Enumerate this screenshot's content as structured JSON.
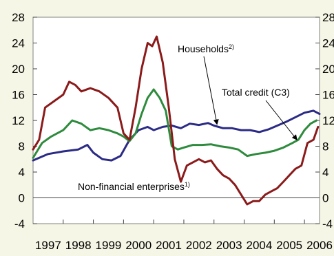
{
  "chart_data": {
    "type": "line",
    "title": "",
    "xlabel": "",
    "ylabel": "",
    "ylim": [
      -4,
      28
    ],
    "xlim": [
      1997,
      2006.5
    ],
    "y_ticks": [
      -4,
      0,
      4,
      8,
      12,
      16,
      20,
      24,
      28
    ],
    "y_tick_labels": [
      "-4",
      "0",
      "4",
      "8",
      "12",
      "16",
      "20",
      "24",
      "28"
    ],
    "x_tick_labels": [
      "1997",
      "1998",
      "1999",
      "2000",
      "2001",
      "2002",
      "2003",
      "2004",
      "2005",
      "2006"
    ],
    "grid": false,
    "legend": "none (inline annotations with arrows)",
    "annotations": [
      {
        "text": "Households",
        "sup": "2)",
        "target_series": "Households"
      },
      {
        "text": "Total credit (C3)",
        "sup": "",
        "target_series": "Total credit (C3)"
      },
      {
        "text": "Non-financial enterprises",
        "sup": "1)",
        "target_series": "Non-financial enterprises"
      }
    ],
    "series": [
      {
        "name": "Households",
        "color": "#2b2b86",
        "x": [
          1997.0,
          1997.5,
          1998.0,
          1998.5,
          1998.8,
          1999.0,
          1999.3,
          1999.6,
          1999.9,
          2000.2,
          2000.5,
          2000.8,
          2001.0,
          2001.3,
          2001.6,
          2001.9,
          2002.2,
          2002.5,
          2002.8,
          2003.0,
          2003.3,
          2003.6,
          2003.9,
          2004.2,
          2004.5,
          2004.8,
          2005.1,
          2005.4,
          2005.7,
          2006.0,
          2006.3,
          2006.5
        ],
        "y": [
          5.8,
          6.8,
          7.2,
          7.5,
          8.2,
          7.0,
          6.0,
          5.8,
          6.5,
          9.0,
          10.5,
          11.0,
          10.5,
          11.0,
          11.2,
          10.8,
          11.5,
          11.3,
          11.6,
          11.2,
          10.8,
          10.8,
          10.5,
          10.5,
          10.2,
          10.6,
          11.2,
          11.8,
          12.5,
          13.2,
          13.5,
          13.0
        ]
      },
      {
        "name": "Total credit (C3)",
        "color": "#2e8b3d",
        "x": [
          1997.0,
          1997.3,
          1997.6,
          1998.0,
          1998.3,
          1998.6,
          1998.9,
          1999.2,
          1999.5,
          1999.8,
          2000.0,
          2000.2,
          2000.4,
          2000.6,
          2000.8,
          2001.0,
          2001.2,
          2001.4,
          2001.6,
          2001.8,
          2002.0,
          2002.3,
          2002.6,
          2002.9,
          2003.2,
          2003.5,
          2003.8,
          2004.1,
          2004.4,
          2004.7,
          2005.0,
          2005.3,
          2005.6,
          2005.8,
          2006.0,
          2006.2,
          2006.4
        ],
        "y": [
          6.2,
          8.5,
          9.5,
          10.5,
          12.0,
          11.5,
          10.5,
          10.8,
          10.5,
          10.0,
          9.5,
          8.8,
          10.0,
          13.0,
          15.5,
          16.8,
          15.5,
          13.5,
          8.0,
          7.5,
          7.8,
          8.2,
          8.2,
          8.3,
          8.0,
          7.8,
          7.5,
          6.5,
          6.8,
          7.0,
          7.3,
          7.8,
          8.5,
          9.0,
          10.5,
          11.5,
          12.0
        ]
      },
      {
        "name": "Non-financial enterprises",
        "color": "#8b1a1a",
        "x": [
          1997.0,
          1997.2,
          1997.4,
          1997.7,
          1998.0,
          1998.2,
          1998.4,
          1998.6,
          1998.9,
          1999.2,
          1999.5,
          1999.8,
          2000.0,
          2000.2,
          2000.4,
          2000.6,
          2000.8,
          2000.95,
          2001.1,
          2001.3,
          2001.5,
          2001.7,
          2001.9,
          2002.1,
          2002.3,
          2002.5,
          2002.7,
          2002.9,
          2003.1,
          2003.3,
          2003.5,
          2003.7,
          2003.9,
          2004.1,
          2004.3,
          2004.5,
          2004.7,
          2004.9,
          2005.1,
          2005.3,
          2005.5,
          2005.7,
          2005.9,
          2006.1,
          2006.3,
          2006.45
        ],
        "y": [
          7.5,
          9.0,
          14.0,
          15.0,
          16.0,
          18.0,
          17.5,
          16.5,
          17.0,
          16.5,
          15.5,
          14.0,
          10.0,
          9.0,
          14.0,
          20.0,
          24.0,
          23.5,
          25.0,
          21.0,
          14.0,
          6.0,
          2.5,
          5.0,
          5.5,
          6.0,
          5.5,
          5.8,
          4.5,
          3.5,
          3.0,
          2.0,
          0.5,
          -1.0,
          -0.5,
          -0.5,
          0.5,
          1.0,
          1.5,
          2.5,
          3.5,
          4.5,
          5.0,
          8.5,
          9.0,
          11.0
        ]
      }
    ]
  }
}
